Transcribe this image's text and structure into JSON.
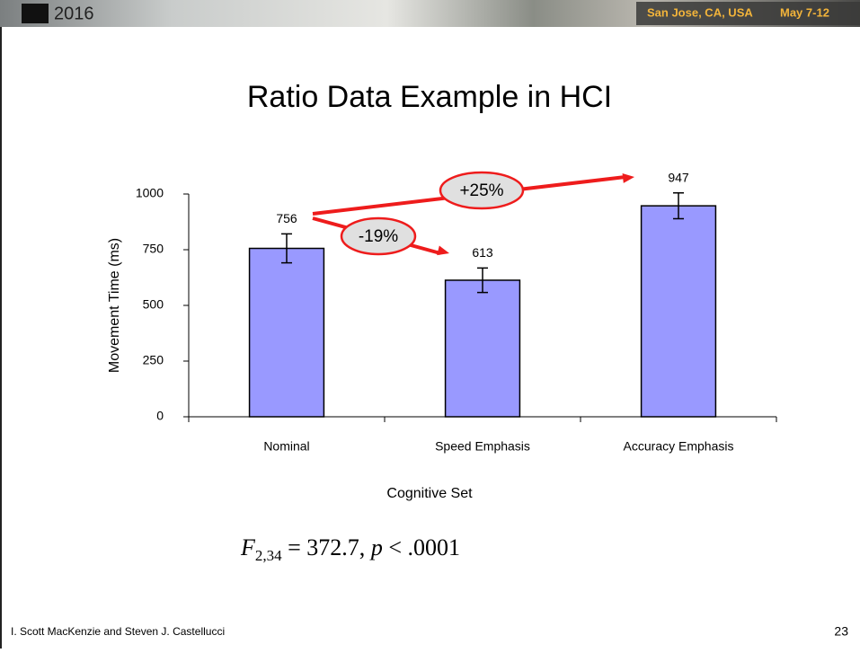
{
  "header": {
    "year": "2016",
    "location": "San Jose, CA, USA",
    "dates": "May 7-12"
  },
  "title": "Ratio Data Example in HCI",
  "chart_data": {
    "type": "bar",
    "categories": [
      "Nominal",
      "Speed Emphasis",
      "Accuracy Emphasis"
    ],
    "values": [
      756,
      613,
      947
    ],
    "errors": [
      65,
      55,
      58
    ],
    "color": "#9999ff",
    "ylim": [
      0,
      1000
    ],
    "yticks": [
      0,
      250,
      500,
      750,
      1000
    ],
    "y_label": "Movement Time (ms)",
    "x_label": "Cognitive Set",
    "annotations": [
      "+25%",
      "-19%"
    ]
  },
  "formula": {
    "f": "F",
    "sub": "2,34",
    "rest": " = 372.7, ",
    "p": "p",
    "tail": " < .0001"
  },
  "footer": {
    "authors": "I. Scott MacKenzie and Steven J. Castellucci",
    "page": "23"
  }
}
